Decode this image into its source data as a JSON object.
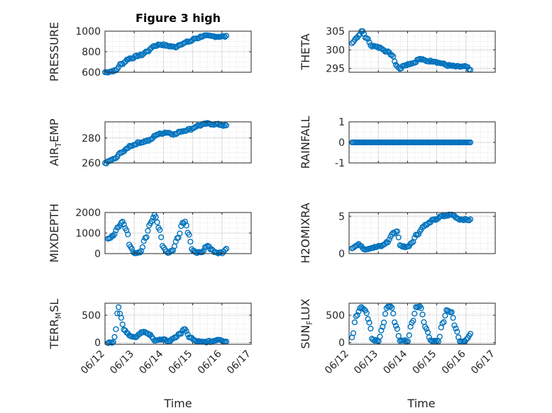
{
  "figure": {
    "title": "Figure 3 high",
    "xlabel": "Time"
  },
  "colors": {
    "marker": "#0072BD",
    "axis": "#262626",
    "grid": "#d9d9d9",
    "background": "#ffffff"
  },
  "chart_data": [
    {
      "type": "scatter",
      "ylabel": "PRESSURE",
      "ylabel_sub": "",
      "ylabel_tail": "",
      "ylim": [
        600,
        1000
      ],
      "yticks": [
        600,
        800,
        1000
      ],
      "yticklabels": [
        "600",
        "800",
        "1000"
      ],
      "xlim": [
        0,
        5
      ],
      "xticks": [
        0,
        1,
        2,
        3,
        4,
        5
      ],
      "xticklabels": [
        "06/12",
        "06/13",
        "06/14",
        "06/15",
        "06/16",
        "06/17"
      ],
      "xtick_labels_shown": false,
      "grid": "major and minor dotted",
      "keypoints": [
        [
          0,
          600
        ],
        [
          0.35,
          615
        ],
        [
          0.55,
          680
        ],
        [
          0.85,
          735
        ],
        [
          1.2,
          765
        ],
        [
          1.5,
          810
        ],
        [
          1.65,
          855
        ],
        [
          1.9,
          870
        ],
        [
          2.2,
          855
        ],
        [
          2.4,
          845
        ],
        [
          2.6,
          875
        ],
        [
          2.9,
          900
        ],
        [
          3.1,
          930
        ],
        [
          3.4,
          955
        ],
        [
          3.6,
          950
        ],
        [
          3.85,
          948
        ],
        [
          4.15,
          948
        ]
      ]
    },
    {
      "type": "scatter",
      "ylabel": "THETA",
      "ylabel_sub": "",
      "ylabel_tail": "",
      "ylim": [
        294,
        305
      ],
      "yticks": [
        295,
        300,
        305
      ],
      "yticklabels": [
        "295",
        "300",
        "305"
      ],
      "xlim": [
        0,
        5
      ],
      "xticks": [
        0,
        1,
        2,
        3,
        4,
        5
      ],
      "xticklabels": [
        "06/12",
        "06/13",
        "06/14",
        "06/15",
        "06/16",
        "06/17"
      ],
      "xtick_labels_shown": false,
      "grid": "major and minor dotted",
      "keypoints": [
        [
          0.1,
          302
        ],
        [
          0.3,
          303.5
        ],
        [
          0.45,
          305
        ],
        [
          0.6,
          303
        ],
        [
          0.8,
          301
        ],
        [
          1.1,
          300.5
        ],
        [
          1.3,
          299.5
        ],
        [
          1.5,
          298.5
        ],
        [
          1.6,
          296
        ],
        [
          1.75,
          295
        ],
        [
          1.9,
          296
        ],
        [
          2.2,
          296.5
        ],
        [
          2.4,
          297.5
        ],
        [
          2.7,
          297
        ],
        [
          2.9,
          297
        ],
        [
          3.1,
          296.5
        ],
        [
          3.4,
          295.8
        ],
        [
          3.7,
          295.5
        ],
        [
          4.0,
          295.5
        ],
        [
          4.15,
          294.5
        ]
      ]
    },
    {
      "type": "scatter",
      "ylabel": "AIR",
      "ylabel_sub": "T",
      "ylabel_tail": "EMP",
      "ylim": [
        260,
        293
      ],
      "yticks": [
        260,
        280
      ],
      "yticklabels": [
        "260",
        "280"
      ],
      "xlim": [
        0,
        5
      ],
      "xticks": [
        0,
        1,
        2,
        3,
        4,
        5
      ],
      "xticklabels": [
        "06/12",
        "06/13",
        "06/14",
        "06/15",
        "06/16",
        "06/17"
      ],
      "xtick_labels_shown": false,
      "grid": "major and minor dotted",
      "keypoints": [
        [
          0,
          260
        ],
        [
          0.3,
          263
        ],
        [
          0.6,
          269
        ],
        [
          0.9,
          274
        ],
        [
          1.2,
          276.5
        ],
        [
          1.5,
          278
        ],
        [
          1.8,
          283
        ],
        [
          2.1,
          284.5
        ],
        [
          2.4,
          283
        ],
        [
          2.6,
          285.5
        ],
        [
          2.9,
          287
        ],
        [
          3.2,
          290
        ],
        [
          3.5,
          291.5
        ],
        [
          3.8,
          291
        ],
        [
          4.15,
          290
        ]
      ]
    },
    {
      "type": "scatter",
      "ylabel": "RAINFALL",
      "ylabel_sub": "",
      "ylabel_tail": "",
      "ylim": [
        -1,
        1
      ],
      "yticks": [
        -1,
        0,
        1
      ],
      "yticklabels": [
        "-1",
        "0",
        "1"
      ],
      "xlim": [
        0,
        5
      ],
      "xticks": [
        0,
        1,
        2,
        3,
        4,
        5
      ],
      "xticklabels": [
        "06/12",
        "06/13",
        "06/14",
        "06/15",
        "06/16",
        "06/17"
      ],
      "xtick_labels_shown": false,
      "grid": "major and minor dotted",
      "keypoints": [
        [
          0.1,
          0
        ],
        [
          4.15,
          0
        ]
      ]
    },
    {
      "type": "scatter",
      "ylabel": "MIXDEPTH",
      "ylabel_sub": "",
      "ylabel_tail": "",
      "ylim": [
        0,
        2000
      ],
      "yticks": [
        0,
        1000,
        2000
      ],
      "yticklabels": [
        "0",
        "1000",
        "2000"
      ],
      "xlim": [
        0,
        5
      ],
      "xticks": [
        0,
        1,
        2,
        3,
        4,
        5
      ],
      "xticklabels": [
        "06/12",
        "06/13",
        "06/14",
        "06/15",
        "06/16",
        "06/17"
      ],
      "xtick_labels_shown": false,
      "grid": "major and minor dotted",
      "keypoints": [
        [
          0.1,
          700
        ],
        [
          0.3,
          900
        ],
        [
          0.45,
          1300
        ],
        [
          0.6,
          1550
        ],
        [
          0.75,
          1100
        ],
        [
          0.85,
          350
        ],
        [
          1.0,
          50
        ],
        [
          1.2,
          30
        ],
        [
          1.4,
          800
        ],
        [
          1.55,
          1500
        ],
        [
          1.7,
          1900
        ],
        [
          1.85,
          1200
        ],
        [
          2.0,
          300
        ],
        [
          2.15,
          50
        ],
        [
          2.3,
          150
        ],
        [
          2.5,
          800
        ],
        [
          2.65,
          1500
        ],
        [
          2.75,
          1550
        ],
        [
          2.85,
          1000
        ],
        [
          3.0,
          100
        ],
        [
          3.3,
          30
        ],
        [
          3.5,
          400
        ],
        [
          3.65,
          200
        ],
        [
          3.8,
          30
        ],
        [
          4.0,
          50
        ],
        [
          4.15,
          250
        ]
      ]
    },
    {
      "type": "scatter",
      "ylabel": "H2OMIXRA",
      "ylabel_sub": "",
      "ylabel_tail": "",
      "ylim": [
        0,
        5.5
      ],
      "yticks": [
        0,
        5
      ],
      "yticklabels": [
        "0",
        "5"
      ],
      "xlim": [
        0,
        5
      ],
      "xticks": [
        0,
        1,
        2,
        3,
        4,
        5
      ],
      "xticklabels": [
        "06/12",
        "06/13",
        "06/14",
        "06/15",
        "06/16",
        "06/17"
      ],
      "xtick_labels_shown": false,
      "grid": "major and minor dotted",
      "keypoints": [
        [
          0.1,
          0.8
        ],
        [
          0.35,
          1.2
        ],
        [
          0.55,
          0.6
        ],
        [
          0.8,
          0.8
        ],
        [
          1.1,
          1.0
        ],
        [
          1.3,
          1.5
        ],
        [
          1.5,
          2.7
        ],
        [
          1.65,
          3.0
        ],
        [
          1.75,
          1.0
        ],
        [
          2.0,
          0.9
        ],
        [
          2.15,
          1.5
        ],
        [
          2.3,
          2.5
        ],
        [
          2.6,
          3.8
        ],
        [
          2.9,
          4.5
        ],
        [
          3.2,
          5.0
        ],
        [
          3.5,
          5.2
        ],
        [
          3.8,
          4.6
        ],
        [
          4.15,
          4.5
        ]
      ]
    },
    {
      "type": "scatter",
      "ylabel": "TERR",
      "ylabel_sub": "M",
      "ylabel_tail": "SL",
      "ylim": [
        -30,
        720
      ],
      "yticks": [
        0,
        500
      ],
      "yticklabels": [
        "0",
        "500"
      ],
      "xlim": [
        0,
        5
      ],
      "xticks": [
        0,
        1,
        2,
        3,
        4,
        5
      ],
      "xticklabels": [
        "06/12",
        "06/13",
        "06/14",
        "06/15",
        "06/16",
        "06/17"
      ],
      "xtick_labels_shown": true,
      "grid": "major and minor dotted",
      "keypoints": [
        [
          0.1,
          0
        ],
        [
          0.3,
          0
        ],
        [
          0.35,
          200
        ],
        [
          0.45,
          650
        ],
        [
          0.55,
          450
        ],
        [
          0.65,
          250
        ],
        [
          0.8,
          150
        ],
        [
          1.0,
          100
        ],
        [
          1.3,
          200
        ],
        [
          1.5,
          150
        ],
        [
          1.7,
          50
        ],
        [
          2.0,
          50
        ],
        [
          2.2,
          30
        ],
        [
          2.4,
          100
        ],
        [
          2.55,
          150
        ],
        [
          2.7,
          250
        ],
        [
          2.9,
          100
        ],
        [
          3.1,
          30
        ],
        [
          3.3,
          10
        ],
        [
          3.6,
          20
        ],
        [
          3.9,
          60
        ],
        [
          4.15,
          20
        ]
      ]
    },
    {
      "type": "scatter",
      "ylabel": "SUN",
      "ylabel_sub": "F",
      "ylabel_tail": "LUX",
      "ylim": [
        -30,
        720
      ],
      "yticks": [
        0,
        500
      ],
      "yticklabels": [
        "0",
        "500"
      ],
      "xlim": [
        0,
        5
      ],
      "xticks": [
        0,
        1,
        2,
        3,
        4,
        5
      ],
      "xticklabels": [
        "06/12",
        "06/13",
        "06/14",
        "06/15",
        "06/16",
        "06/17"
      ],
      "xtick_labels_shown": true,
      "grid": "major and minor dotted",
      "keypoints": [
        [
          0.1,
          100
        ],
        [
          0.25,
          500
        ],
        [
          0.4,
          650
        ],
        [
          0.55,
          600
        ],
        [
          0.7,
          350
        ],
        [
          0.8,
          50
        ],
        [
          1.0,
          30
        ],
        [
          1.15,
          300
        ],
        [
          1.3,
          650
        ],
        [
          1.45,
          650
        ],
        [
          1.6,
          300
        ],
        [
          1.75,
          30
        ],
        [
          2.0,
          30
        ],
        [
          2.15,
          350
        ],
        [
          2.3,
          650
        ],
        [
          2.45,
          650
        ],
        [
          2.6,
          300
        ],
        [
          2.8,
          30
        ],
        [
          3.05,
          30
        ],
        [
          3.2,
          350
        ],
        [
          3.35,
          600
        ],
        [
          3.5,
          550
        ],
        [
          3.65,
          250
        ],
        [
          3.8,
          30
        ],
        [
          3.95,
          30
        ],
        [
          4.15,
          150
        ]
      ]
    }
  ]
}
